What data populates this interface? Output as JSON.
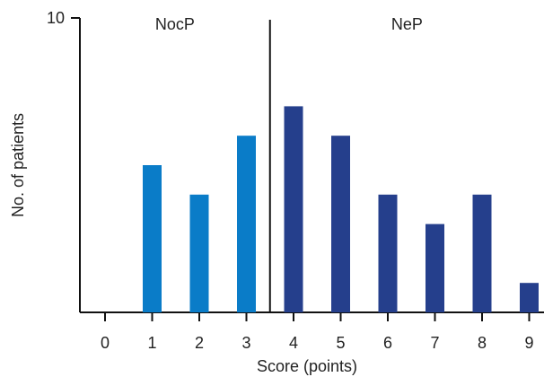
{
  "chart_data": {
    "type": "bar",
    "xlabel": "Score (points)",
    "ylabel": "No. of patients",
    "categories": [
      "0",
      "1",
      "2",
      "3",
      "4",
      "5",
      "6",
      "7",
      "8",
      "9"
    ],
    "values": [
      0,
      5,
      4,
      6,
      7,
      6,
      4,
      3,
      4,
      1
    ],
    "ylim": [
      0,
      10
    ],
    "yticks": [
      "10"
    ],
    "grid": false,
    "groups": [
      {
        "label": "NocP",
        "categories": [
          "0",
          "1",
          "2",
          "3"
        ],
        "color": "#0a7cc8"
      },
      {
        "label": "NeP",
        "categories": [
          "4",
          "5",
          "6",
          "7",
          "8",
          "9"
        ],
        "color": "#253f8c"
      }
    ],
    "divider_after_category": "3"
  }
}
